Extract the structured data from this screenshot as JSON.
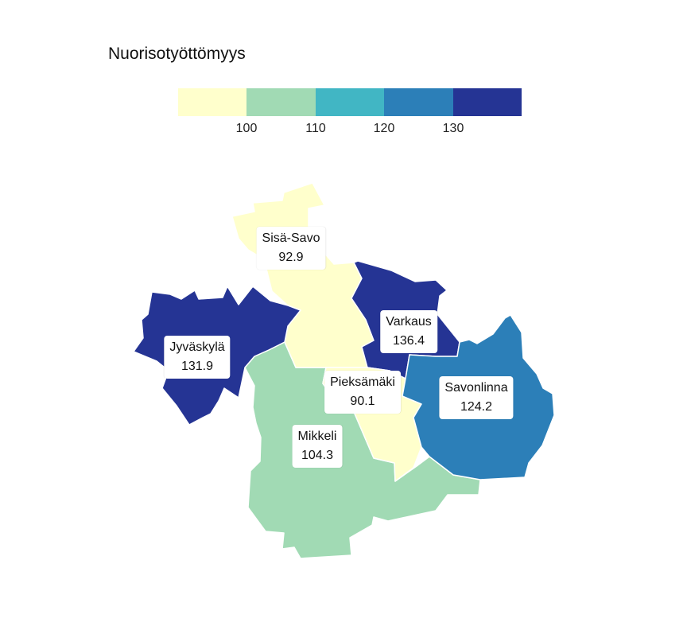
{
  "title": "Nuorisotyöttömyys",
  "legend": {
    "colors": [
      "#ffffcc",
      "#a1dab4",
      "#41b6c4",
      "#2c7fb8",
      "#253494"
    ],
    "ticks": [
      "100",
      "110",
      "120",
      "130"
    ]
  },
  "regions": [
    {
      "id": "sisa-savo",
      "name": "Sisä-Savo",
      "value": "92.9",
      "color": "#ffffcc"
    },
    {
      "id": "varkaus",
      "name": "Varkaus",
      "value": "136.4",
      "color": "#253494"
    },
    {
      "id": "jyvaskyla",
      "name": "Jyväskylä",
      "value": "131.9",
      "color": "#253494"
    },
    {
      "id": "pieksamaki",
      "name": "Pieksämäki",
      "value": "90.1",
      "color": "#ffffcc"
    },
    {
      "id": "savonlinna",
      "name": "Savonlinna",
      "value": "124.2",
      "color": "#2c7fb8"
    },
    {
      "id": "mikkeli",
      "name": "Mikkeli",
      "value": "104.3",
      "color": "#a1dab4"
    }
  ]
}
